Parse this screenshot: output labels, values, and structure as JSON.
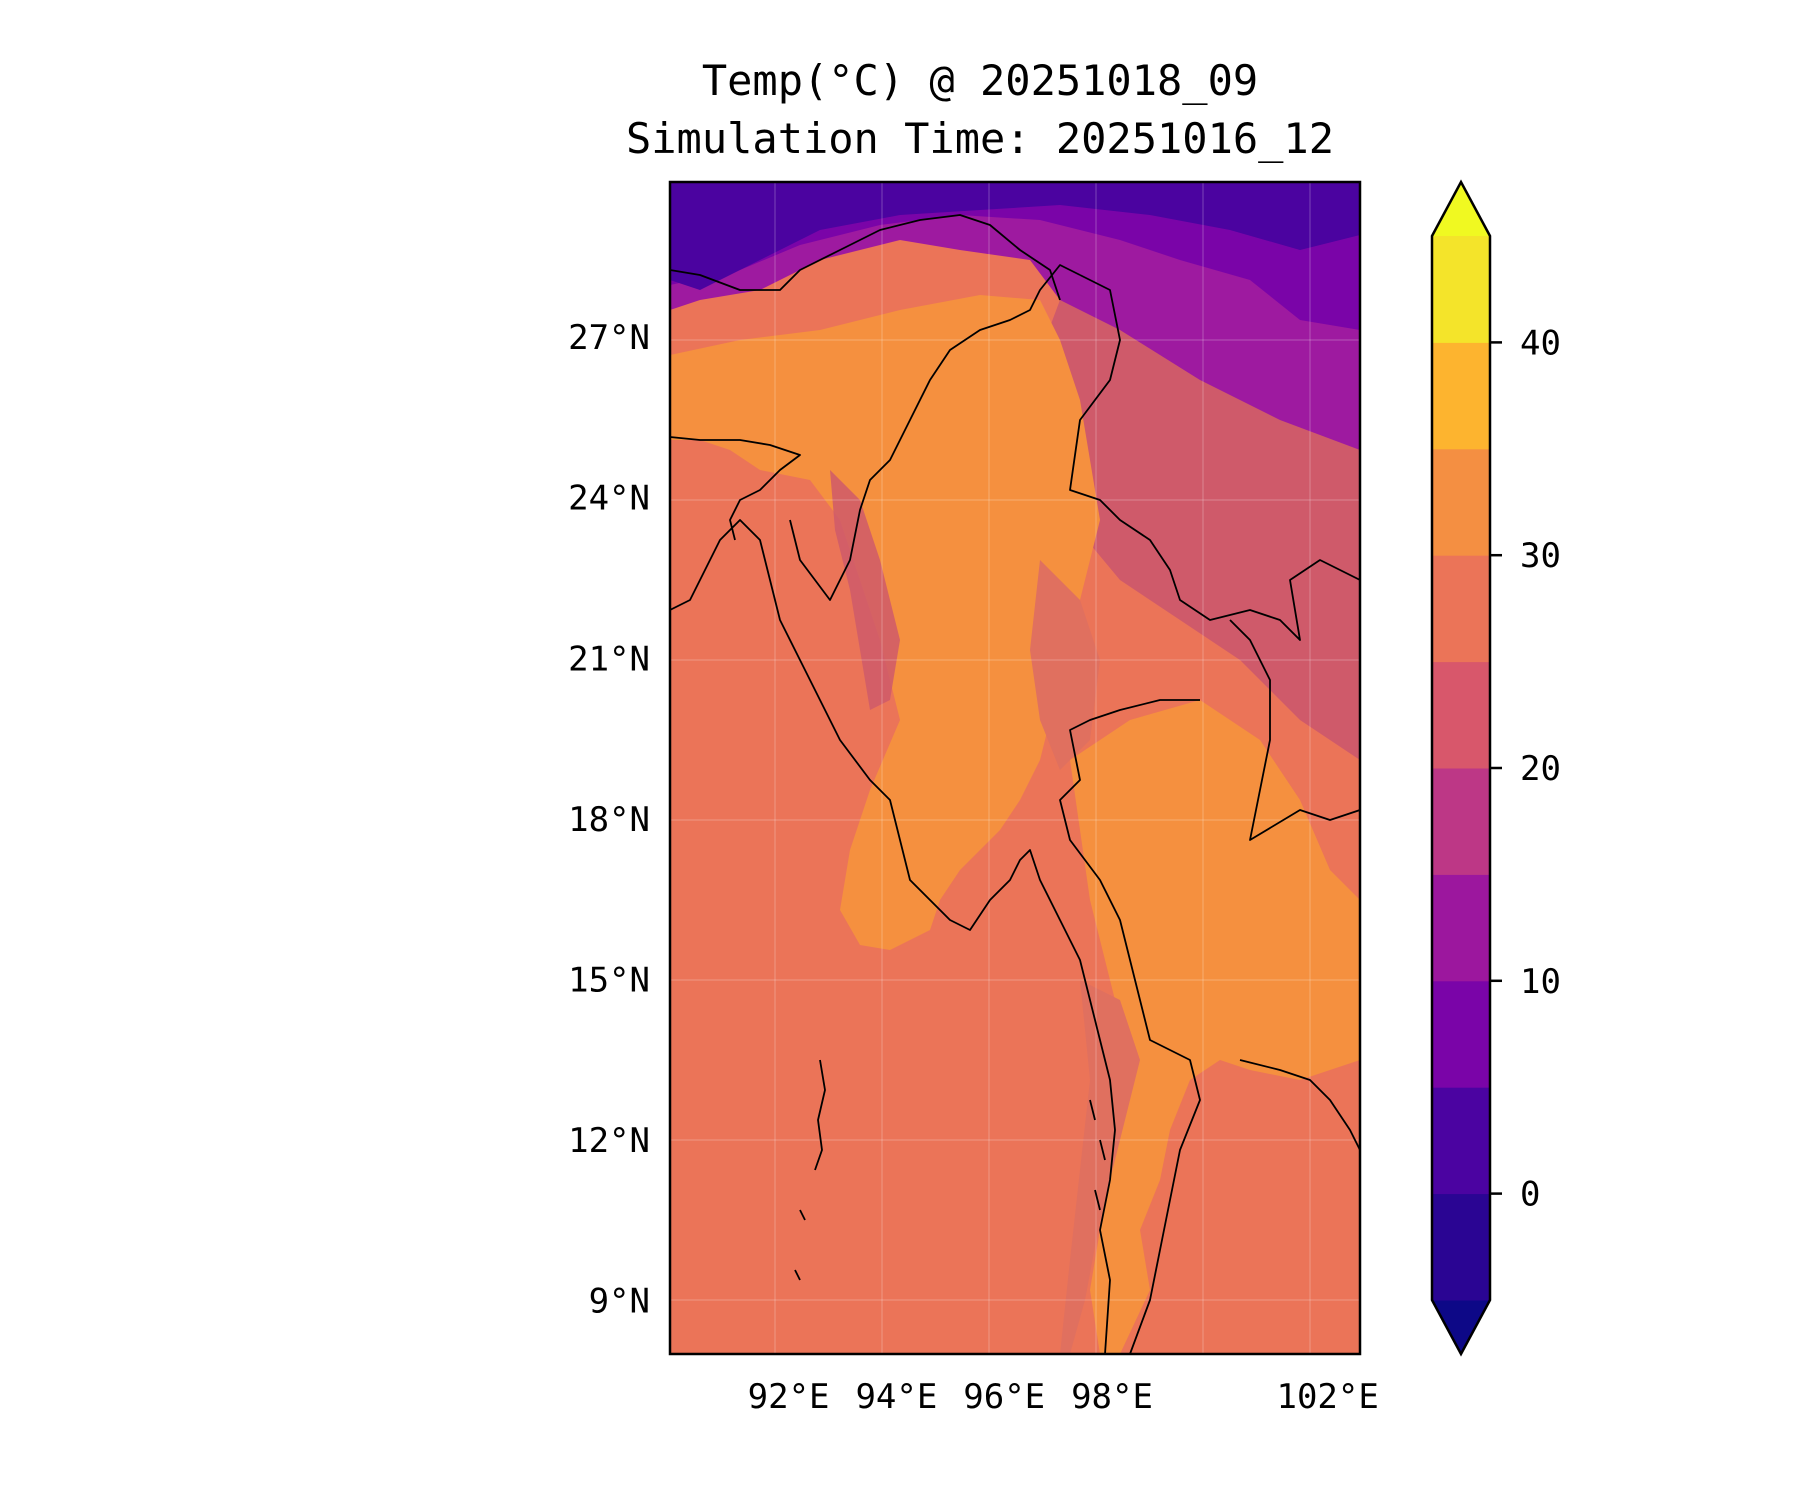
{
  "title": {
    "line1": "Temp(°C) @ 20251018_09",
    "line2": "Simulation Time: 20251016_12"
  },
  "map": {
    "lon_range": [
      89.8,
      102.6
    ],
    "lat_range": [
      8.0,
      29.9
    ],
    "lat_ticks": [
      {
        "value": 27,
        "label": "27°N"
      },
      {
        "value": 24,
        "label": "24°N"
      },
      {
        "value": 21,
        "label": "21°N"
      },
      {
        "value": 18,
        "label": "18°N"
      },
      {
        "value": 15,
        "label": "15°N"
      },
      {
        "value": 12,
        "label": "12°N"
      },
      {
        "value": 9,
        "label": "9°N"
      }
    ],
    "lon_ticks": [
      {
        "value": 92,
        "label": "92°E"
      },
      {
        "value": 94,
        "label": "94°E"
      },
      {
        "value": 96,
        "label": "96°E"
      },
      {
        "value": 98,
        "label": "98°E"
      },
      {
        "value": 102,
        "label": "102°E"
      }
    ],
    "colors": {
      "sea": "#eb7458",
      "lowland": "#f5903f",
      "hills": "#e0705f",
      "mid": "#cf5a6a",
      "cold": "#9e1aa0",
      "colder": "#7a04a8",
      "coldest": "#4b03a0",
      "coast": "#000000"
    }
  },
  "colorbar": {
    "levels": [
      -10,
      -5,
      0,
      5,
      10,
      15,
      20,
      25,
      30,
      35,
      40,
      45,
      50
    ],
    "colors": [
      "#0d0887",
      "#2a0593",
      "#4b03a1",
      "#7a04a8",
      "#9c179e",
      "#bd3786",
      "#d8576b",
      "#eb7458",
      "#f48f42",
      "#fdb42f",
      "#f4e42a",
      "#f0f921"
    ],
    "tick_labels": [
      {
        "value": 0,
        "label": "0"
      },
      {
        "value": 10,
        "label": "10"
      },
      {
        "value": 20,
        "label": "20"
      },
      {
        "value": 30,
        "label": "30"
      },
      {
        "value": 40,
        "label": "40"
      }
    ]
  }
}
